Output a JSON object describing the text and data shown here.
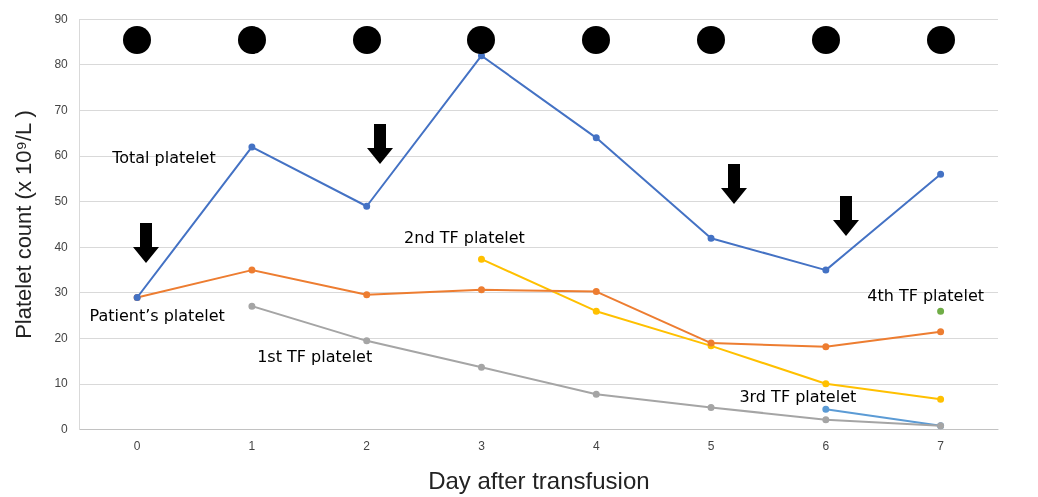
{
  "chart_data": {
    "type": "line",
    "xlabel": "Day after transfusion",
    "ylabel": "Platelet count (x 10⁹/L )",
    "categories": [
      "0",
      "1",
      "2",
      "3",
      "4",
      "5",
      "6",
      "7"
    ],
    "ylim": [
      0,
      90
    ],
    "yticks": [
      0,
      10,
      20,
      30,
      40,
      50,
      60,
      70,
      80,
      90
    ],
    "grid": "y",
    "legend": false,
    "marker": "circle",
    "series": [
      {
        "name": "Total platelet",
        "color": "#4472c4",
        "values": [
          29,
          62,
          49,
          82,
          64,
          42,
          35,
          56
        ]
      },
      {
        "name": "Patient’s platelet",
        "color": "#ed7d31",
        "values": [
          29,
          35,
          29.6,
          30.7,
          30.3,
          19,
          18.2,
          21.5
        ]
      },
      {
        "name": "1st TF platelet",
        "color": "#a5a5a5",
        "values": [
          null,
          27.1,
          19.5,
          13.7,
          7.8,
          4.9,
          2.2,
          0.9
        ]
      },
      {
        "name": "2nd TF platelet",
        "color": "#ffc000",
        "values": [
          null,
          null,
          null,
          37.4,
          26,
          18.4,
          10.1,
          6.7
        ]
      },
      {
        "name": "3rd TF platelet",
        "color": "#5b9bd5",
        "values": [
          null,
          null,
          null,
          null,
          null,
          null,
          4.5,
          0.9
        ]
      },
      {
        "name": "4th TF platelet",
        "color": "#70ad47",
        "values": [
          null,
          null,
          null,
          null,
          null,
          null,
          null,
          26
        ]
      }
    ]
  }
}
